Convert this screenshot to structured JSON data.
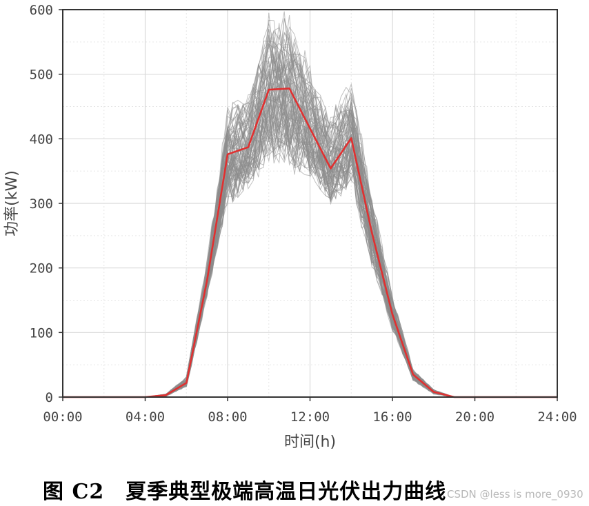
{
  "chart_data": {
    "type": "line",
    "xlabel": "时间(h)",
    "ylabel": "功率(kW)",
    "x_ticks": [
      "00:00",
      "04:00",
      "08:00",
      "12:00",
      "16:00",
      "20:00",
      "24:00"
    ],
    "y_ticks": [
      "0",
      "100",
      "200",
      "300",
      "400",
      "500",
      "600"
    ],
    "xlim": [
      0,
      24
    ],
    "ylim": [
      0,
      600
    ],
    "grid": true,
    "x": [
      0,
      1,
      2,
      3,
      4,
      5,
      6,
      7,
      8,
      9,
      10,
      11,
      12,
      13,
      14,
      15,
      16,
      17,
      18,
      19,
      20,
      21,
      22,
      23,
      24
    ],
    "series": [
      {
        "values": [
          0,
          0,
          0,
          0,
          0,
          3,
          22,
          180,
          376,
          387,
          476,
          478,
          416,
          354,
          401,
          255,
          128,
          35,
          8,
          0,
          0,
          0,
          0,
          0,
          0
        ],
        "color": "#e03030"
      }
    ],
    "scenario_band": {
      "color": "#8c8c8c",
      "x": [
        0,
        1,
        2,
        3,
        4,
        5,
        6,
        7,
        8,
        9,
        10,
        11,
        12,
        13,
        14,
        15,
        16,
        17,
        18,
        19,
        20,
        21,
        22,
        23,
        24
      ],
      "lower": [
        0,
        0,
        0,
        0,
        0,
        1,
        15,
        150,
        290,
        310,
        360,
        345,
        330,
        290,
        320,
        200,
        100,
        25,
        4,
        0,
        0,
        0,
        0,
        0,
        0
      ],
      "upper": [
        0,
        0,
        0,
        0,
        0,
        5,
        32,
        215,
        460,
        480,
        600,
        600,
        520,
        440,
        500,
        320,
        160,
        45,
        12,
        0,
        0,
        0,
        0,
        0,
        0
      ]
    }
  },
  "caption": "图 C2　夏季典型极端高温日光伏出力曲线",
  "watermark": "CSDN @less is more_0930"
}
